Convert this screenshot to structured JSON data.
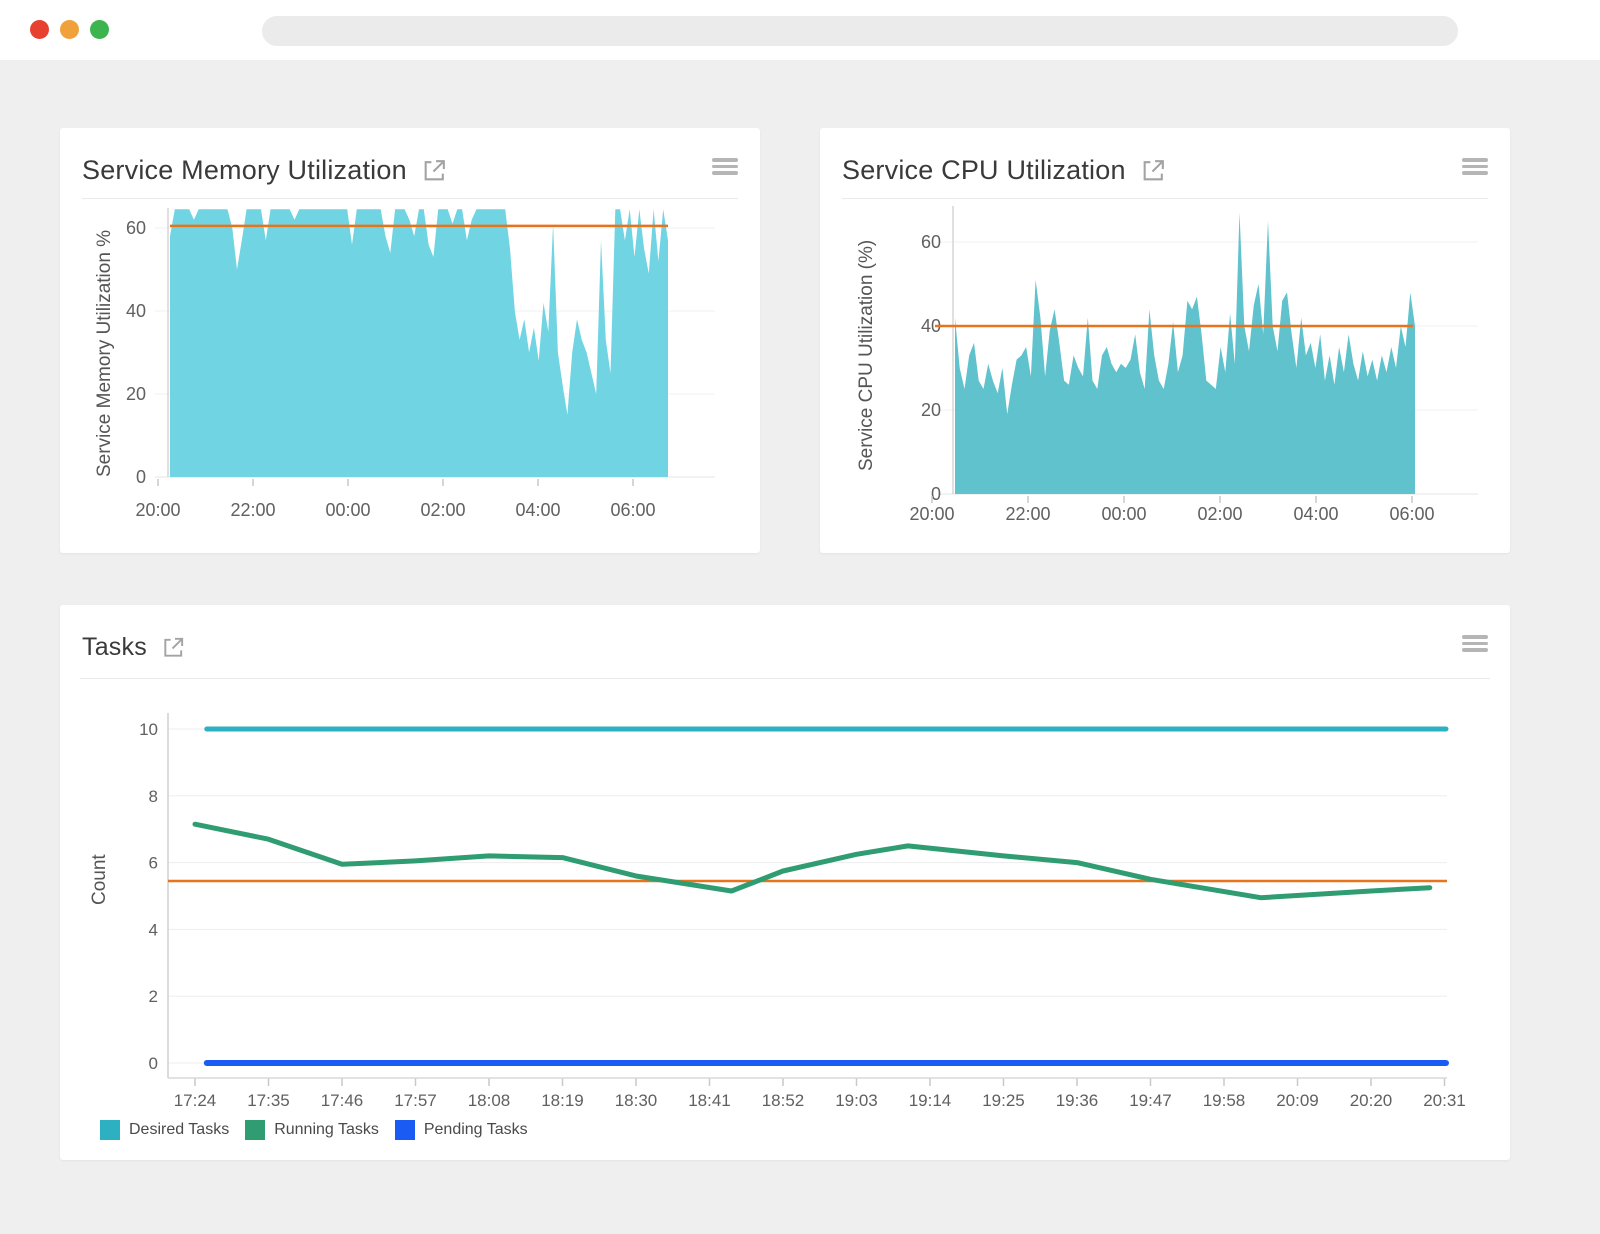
{
  "browser": {
    "traffic_lights": {
      "close": "#e8402f",
      "minimize": "#f0a13b",
      "maximize": "#3db44e"
    },
    "url_text": ""
  },
  "chart_data": [
    {
      "type": "area",
      "title": "Service Memory Utilization",
      "ylabel": "Service Memory Utilization %",
      "xticks": [
        "20:00",
        "22:00",
        "00:00",
        "02:00",
        "04:00",
        "06:00"
      ],
      "yticks": [
        0,
        20,
        40,
        60
      ],
      "ylim": [
        0,
        66
      ],
      "clip": 64.5,
      "threshold": 60.5,
      "threshold_color": "#e8731d",
      "color": "#70d4e3",
      "grid": true,
      "values": [
        58,
        64.5,
        64.5,
        64.5,
        64.5,
        62,
        64.5,
        64.5,
        64.5,
        64.5,
        64.5,
        64.5,
        64.5,
        60,
        50,
        57,
        64.5,
        64.5,
        64.5,
        64.5,
        57,
        64.5,
        64.5,
        64.5,
        64.5,
        64.5,
        62,
        64.5,
        64.5,
        64.5,
        64.5,
        64.5,
        64.5,
        64.5,
        64.5,
        64.5,
        64.5,
        64.5,
        56,
        64.5,
        64.5,
        64.5,
        64.5,
        64.5,
        64.5,
        58,
        54,
        64.5,
        64.5,
        64.5,
        62,
        58,
        64.5,
        64.5,
        56,
        53,
        64.5,
        64.5,
        64.5,
        61,
        64.5,
        64.5,
        57,
        62,
        64.5,
        64.5,
        64.5,
        64.5,
        64.5,
        64.5,
        64.5,
        55,
        40,
        33,
        38,
        30,
        36,
        28,
        42,
        35,
        61,
        30,
        22,
        15,
        30,
        38,
        33,
        30,
        25,
        20,
        57,
        33,
        25,
        64.5,
        64.5,
        57,
        64.5,
        53,
        64.5,
        55,
        49,
        64.5,
        52,
        64.5,
        57
      ]
    },
    {
      "type": "area",
      "title": "Service CPU Utilization",
      "ylabel": "Service CPU Utilization (%)",
      "xticks": [
        "20:00",
        "22:00",
        "00:00",
        "02:00",
        "04:00",
        "06:00"
      ],
      "yticks": [
        0,
        20,
        40,
        60
      ],
      "ylim": [
        0,
        68
      ],
      "clip": 999,
      "threshold": 40,
      "threshold_color": "#e8731d",
      "color": "#5fc2cc",
      "grid": true,
      "values": [
        42,
        30,
        25,
        33,
        36,
        27,
        25,
        31,
        27,
        24,
        30,
        19,
        26,
        32,
        33,
        35,
        28,
        51,
        42,
        28,
        39,
        44,
        36,
        27,
        26,
        33,
        30,
        28,
        42,
        27,
        25,
        33,
        35,
        31,
        29,
        31,
        30,
        32,
        38,
        29,
        25,
        44,
        33,
        27,
        25,
        31,
        41,
        29,
        33,
        46,
        44,
        47,
        38,
        27,
        26,
        25,
        35,
        29,
        43,
        31,
        67,
        40,
        34,
        45,
        50,
        38,
        65,
        40,
        34,
        46,
        48,
        38,
        30,
        42,
        33,
        36,
        30,
        38,
        27,
        33,
        26,
        35,
        29,
        38,
        31,
        27,
        34,
        28,
        32,
        27,
        33,
        29,
        35,
        30,
        40,
        35,
        48,
        40
      ]
    },
    {
      "type": "line",
      "title": "Tasks",
      "ylabel": "Count",
      "xticks": [
        "17:24",
        "17:35",
        "17:46",
        "17:57",
        "18:08",
        "18:19",
        "18:30",
        "18:41",
        "18:52",
        "19:03",
        "19:14",
        "19:25",
        "19:36",
        "19:47",
        "19:58",
        "20:09",
        "20:20",
        "20:31"
      ],
      "yticks": [
        0,
        2,
        4,
        6,
        8,
        10
      ],
      "ylim": [
        0,
        10.8
      ],
      "threshold": 5.45,
      "threshold_color": "#e8731d",
      "grid": true,
      "legend_position": "bottom-left",
      "series": [
        {
          "name": "Desired Tasks",
          "color": "#2cb0c2",
          "width": 5,
          "points": [
            [
              0.16,
              10
            ],
            [
              17.02,
              10
            ]
          ]
        },
        {
          "name": "Running Tasks",
          "color": "#2f9c72",
          "width": 5,
          "points": [
            [
              0,
              7.15
            ],
            [
              1,
              6.7
            ],
            [
              2,
              5.95
            ],
            [
              3,
              6.05
            ],
            [
              4,
              6.2
            ],
            [
              5,
              6.15
            ],
            [
              6,
              5.6
            ],
            [
              7.3,
              5.15
            ],
            [
              8,
              5.75
            ],
            [
              9,
              6.25
            ],
            [
              9.7,
              6.5
            ],
            [
              11,
              6.2
            ],
            [
              12,
              6.0
            ],
            [
              13,
              5.5
            ],
            [
              14.5,
              4.95
            ],
            [
              16,
              5.15
            ],
            [
              16.8,
              5.25
            ]
          ]
        },
        {
          "name": "Pending Tasks",
          "color": "#1a5cf3",
          "width": 6,
          "points": [
            [
              0.16,
              0
            ],
            [
              17.02,
              0
            ]
          ]
        }
      ]
    }
  ]
}
